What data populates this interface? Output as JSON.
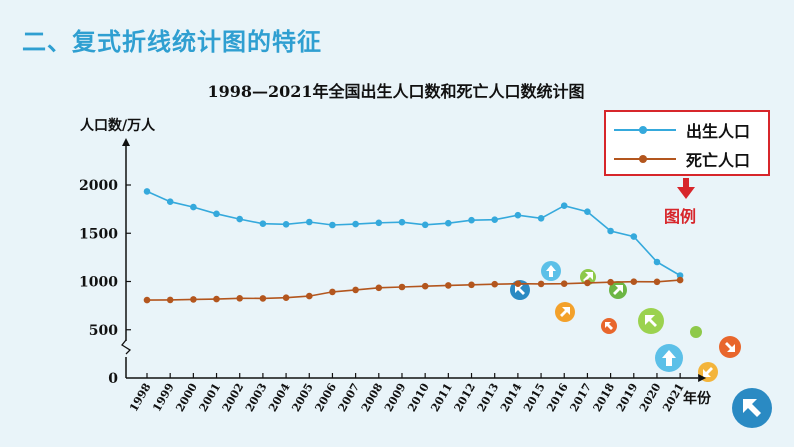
{
  "heading": "二、复式折线统计图的特征",
  "legend_caption": "图例",
  "colors": {
    "heading": "#2f9fd1",
    "births": "#35a9dc",
    "deaths": "#b3561e",
    "legend_border": "#d7262b"
  },
  "chart_data": {
    "type": "line",
    "title": "1998—2021年全国出生人口数和死亡人口数统计图",
    "ylabel": "人口数/万人",
    "xlabel": "年份",
    "ylim": [
      0,
      2000
    ],
    "yticks": [
      0,
      500,
      1000,
      1500,
      2000
    ],
    "y_axis_break": true,
    "grid": false,
    "legend_position": "top-right",
    "x": [
      "1998",
      "1999",
      "2000",
      "2001",
      "2002",
      "2003",
      "2004",
      "2005",
      "2006",
      "2007",
      "2008",
      "2009",
      "2010",
      "2011",
      "2012",
      "2013",
      "2014",
      "2015",
      "2016",
      "2017",
      "2018",
      "2019",
      "2020",
      "2021"
    ],
    "series": [
      {
        "name": "出生人口",
        "color": "#35a9dc",
        "values": [
          1934,
          1827,
          1771,
          1702,
          1647,
          1599,
          1593,
          1617,
          1585,
          1595,
          1608,
          1615,
          1588,
          1604,
          1635,
          1640,
          1687,
          1655,
          1786,
          1723,
          1523,
          1465,
          1202,
          1062
        ]
      },
      {
        "name": "死亡人口",
        "color": "#b3561e",
        "values": [
          807,
          809,
          814,
          818,
          826,
          825,
          832,
          849,
          892,
          913,
          935,
          943,
          951,
          960,
          966,
          972,
          977,
          975,
          977,
          986,
          993,
          998,
          997,
          1014
        ]
      }
    ]
  }
}
